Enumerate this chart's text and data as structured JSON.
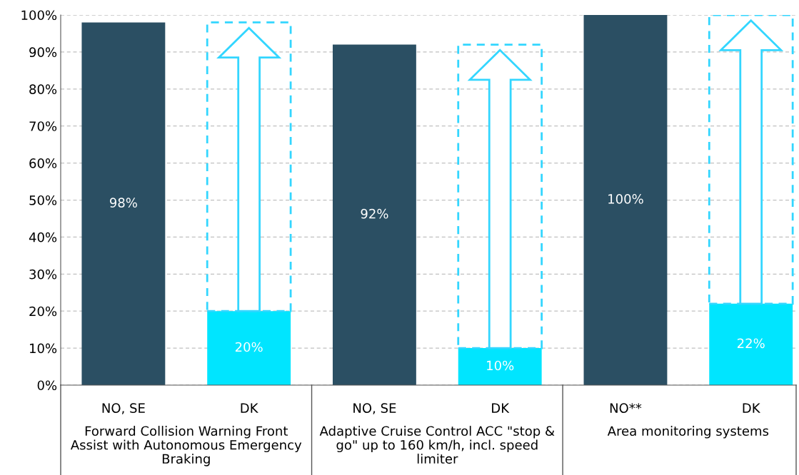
{
  "chart_data": {
    "type": "bar",
    "stacked": true,
    "categories": [
      "NO, SE",
      "DK",
      "NO, SE",
      "DK",
      "NO**",
      "DK"
    ],
    "series": [
      {
        "colors": [
          "#2b4f63",
          "#00e5ff",
          "#2b4f63",
          "#00e5ff",
          "#2b4f63",
          "#00e5ff"
        ],
        "values": [
          98,
          20,
          92,
          10,
          100,
          22
        ],
        "value_labels": [
          "98%",
          "20%",
          "92%",
          "10%",
          "100%",
          "22%"
        ]
      },
      {
        "color": "#33d6ff",
        "line_style": "dashed",
        "values": [
          null,
          78,
          null,
          82,
          null,
          78
        ]
      }
    ],
    "ylim": [
      0,
      100
    ],
    "yticks": [
      {
        "value": 0,
        "label": "0%"
      },
      {
        "value": 10,
        "label": "10%"
      },
      {
        "value": 20,
        "label": "20%"
      },
      {
        "value": 30,
        "label": "30%"
      },
      {
        "value": 40,
        "label": "40%"
      },
      {
        "value": 50,
        "label": "50%"
      },
      {
        "value": 60,
        "label": "60%"
      },
      {
        "value": 70,
        "label": "70%"
      },
      {
        "value": 80,
        "label": "80%"
      },
      {
        "value": 90,
        "label": "90%"
      },
      {
        "value": 100,
        "label": "100%"
      }
    ],
    "grid": "y",
    "annotations": [
      "Forward Collision Warning Front Assist with Autonomous Emergency Braking",
      "Adaptive Cruise Control ACC \"stop & go\" up to 160 km/h, incl. speed limiter",
      "Area monitoring systems"
    ]
  }
}
